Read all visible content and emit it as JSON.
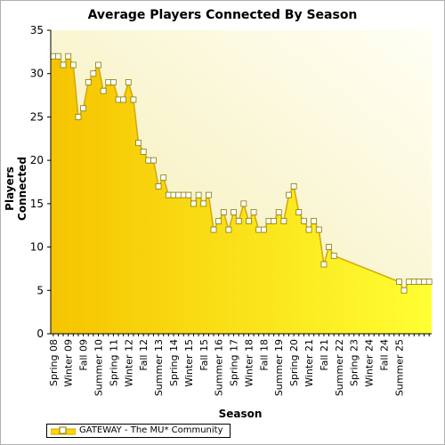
{
  "chart_data": {
    "type": "area",
    "title": "Average Players Connected By Season",
    "xlabel": "Season",
    "ylabel": "Players Connected",
    "ylim": [
      0,
      35
    ],
    "yticks": [
      0,
      5,
      10,
      15,
      20,
      25,
      30,
      35
    ],
    "grid": false,
    "legend_position": "bottom-left",
    "x_categories_shown": [
      "Spring 08",
      "Winter 09",
      "Fall 09",
      "Summer 10",
      "Spring 11",
      "Winter 12",
      "Fall 12",
      "Summer 13",
      "Spring 14",
      "Winter 15",
      "Fall 15",
      "Summer 16",
      "Spring 17",
      "Winter 18",
      "Fall 18",
      "Summer 19",
      "Spring 20",
      "Winter 21",
      "Fall 21",
      "Summer 22",
      "Spring 23",
      "Winter 24",
      "Fall 24",
      "Summer 25"
    ],
    "series": [
      {
        "name": "GATEWAY - The MU* Community",
        "color": "#FFD700",
        "points": [
          {
            "x": 0,
            "y": 32
          },
          {
            "x": 1,
            "y": 32
          },
          {
            "x": 2,
            "y": 31
          },
          {
            "x": 3,
            "y": 32
          },
          {
            "x": 4,
            "y": 31
          },
          {
            "x": 5,
            "y": 25
          },
          {
            "x": 6,
            "y": 26
          },
          {
            "x": 7,
            "y": 29
          },
          {
            "x": 8,
            "y": 30
          },
          {
            "x": 9,
            "y": 31
          },
          {
            "x": 10,
            "y": 28
          },
          {
            "x": 11,
            "y": 29
          },
          {
            "x": 12,
            "y": 29
          },
          {
            "x": 13,
            "y": 27
          },
          {
            "x": 14,
            "y": 27
          },
          {
            "x": 15,
            "y": 29
          },
          {
            "x": 16,
            "y": 27
          },
          {
            "x": 17,
            "y": 22
          },
          {
            "x": 18,
            "y": 21
          },
          {
            "x": 19,
            "y": 20
          },
          {
            "x": 20,
            "y": 20
          },
          {
            "x": 21,
            "y": 17
          },
          {
            "x": 22,
            "y": 18
          },
          {
            "x": 23,
            "y": 16
          },
          {
            "x": 24,
            "y": 16
          },
          {
            "x": 25,
            "y": 16
          },
          {
            "x": 26,
            "y": 16
          },
          {
            "x": 27,
            "y": 16
          },
          {
            "x": 28,
            "y": 15
          },
          {
            "x": 29,
            "y": 16
          },
          {
            "x": 30,
            "y": 15
          },
          {
            "x": 31,
            "y": 16
          },
          {
            "x": 32,
            "y": 12
          },
          {
            "x": 33,
            "y": 13
          },
          {
            "x": 34,
            "y": 14
          },
          {
            "x": 35,
            "y": 12
          },
          {
            "x": 36,
            "y": 14
          },
          {
            "x": 37,
            "y": 13
          },
          {
            "x": 38,
            "y": 15
          },
          {
            "x": 39,
            "y": 13
          },
          {
            "x": 40,
            "y": 14
          },
          {
            "x": 41,
            "y": 12
          },
          {
            "x": 42,
            "y": 12
          },
          {
            "x": 43,
            "y": 13
          },
          {
            "x": 44,
            "y": 13
          },
          {
            "x": 45,
            "y": 14
          },
          {
            "x": 46,
            "y": 13
          },
          {
            "x": 47,
            "y": 16
          },
          {
            "x": 48,
            "y": 17
          },
          {
            "x": 49,
            "y": 14
          },
          {
            "x": 50,
            "y": 13
          },
          {
            "x": 51,
            "y": 12
          },
          {
            "x": 52,
            "y": 13
          },
          {
            "x": 53,
            "y": 12
          },
          {
            "x": 54,
            "y": 8
          },
          {
            "x": 55,
            "y": 10
          },
          {
            "x": 56,
            "y": 9
          },
          {
            "x": 69,
            "y": 6
          },
          {
            "x": 70,
            "y": 5
          },
          {
            "x": 71,
            "y": 6
          },
          {
            "x": 72,
            "y": 6
          },
          {
            "x": 73,
            "y": 6
          },
          {
            "x": 74,
            "y": 6
          },
          {
            "x": 75,
            "y": 6
          }
        ]
      }
    ]
  }
}
